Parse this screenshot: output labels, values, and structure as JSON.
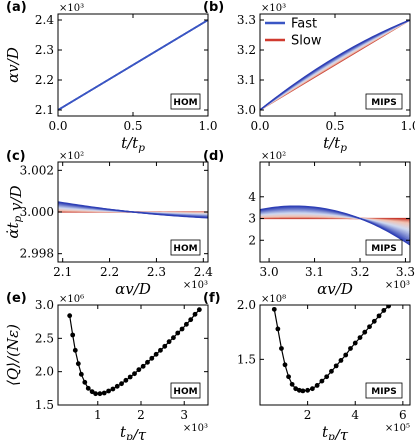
{
  "chart_data": [
    {
      "panel": "(a)",
      "type": "line",
      "tag": "HOM",
      "ylabel": "αv/D",
      "xlabel": "t/t_p",
      "xlim": [
        0,
        1
      ],
      "ylim": [
        2.08,
        2.42
      ],
      "y_multiplier": "×10³",
      "xticks": [
        0.0,
        0.5,
        1.0
      ],
      "xtick_labels": [
        "0.0",
        "0.5",
        "1.0"
      ],
      "yticks": [
        2.1,
        2.2,
        2.3,
        2.4
      ],
      "ytick_labels": [
        "2.1",
        "2.2",
        "2.3",
        "2.4"
      ],
      "curves": {
        "kind": "protocol",
        "count": 22,
        "y0": 2.1,
        "y1": 2.4,
        "curvature_max": 0,
        "overlapping": true
      }
    },
    {
      "panel": "(b)",
      "type": "line",
      "tag": "MIPS",
      "xlabel": "t/t_p",
      "xlim": [
        0,
        1
      ],
      "ylim": [
        2.98,
        3.32
      ],
      "y_multiplier": "×10³",
      "xticks": [
        0.0,
        0.5,
        1.0
      ],
      "xtick_labels": [
        "0.0",
        "0.5",
        "1.0"
      ],
      "yticks": [
        3.0,
        3.1,
        3.2,
        3.3
      ],
      "ytick_labels": [
        "3.0",
        "3.1",
        "3.2",
        "3.3"
      ],
      "legend": {
        "position": "top-left",
        "entries": [
          {
            "label": "Fast",
            "color": "#3a56c4"
          },
          {
            "label": "Slow",
            "color": "#d03a2f"
          }
        ]
      },
      "curves": {
        "kind": "protocol",
        "count": 22,
        "y0": 3.0,
        "y1": 3.3,
        "curvature_max": 0.1,
        "overlapping": false
      }
    },
    {
      "panel": "(c)",
      "type": "line",
      "tag": "HOM",
      "ylabel": "α̇t_p v/D",
      "xlabel": "αv/D",
      "xlim": [
        2.09,
        2.41
      ],
      "ylim": [
        2.9976,
        3.0024
      ],
      "x_multiplier": "×10³",
      "y_multiplier": "×10²",
      "xticks": [
        2.1,
        2.2,
        2.3,
        2.4
      ],
      "xtick_labels": [
        "2.1",
        "2.2",
        "2.3",
        "2.4"
      ],
      "yticks": [
        2.998,
        3.0,
        3.002
      ],
      "ytick_labels": [
        "2.998",
        "3.000",
        "3.002"
      ],
      "curves": {
        "kind": "rate",
        "count": 22,
        "center_x": 2.25,
        "center_y": 3.0,
        "slope_max": -0.0024,
        "curv_max": 0.004
      }
    },
    {
      "panel": "(d)",
      "type": "line",
      "tag": "MIPS",
      "xlabel": "αv/D",
      "xlim": [
        2.98,
        3.31
      ],
      "ylim": [
        1.0,
        5.6
      ],
      "x_multiplier": "×10³",
      "y_multiplier": "×10²",
      "xticks": [
        3.0,
        3.1,
        3.2,
        3.3
      ],
      "xtick_labels": [
        "3.0",
        "3.1",
        "3.2",
        "3.3"
      ],
      "yticks": [
        2,
        3,
        4
      ],
      "ytick_labels": [
        "2",
        "3",
        "4"
      ],
      "curves": {
        "kind": "rate",
        "count": 22,
        "center_x": 3.2,
        "center_y": 3.0,
        "slope_max": -8.0,
        "curv_max": -28.0
      }
    },
    {
      "panel": "(e)",
      "type": "scatter",
      "tag": "HOM",
      "ylabel": "⟨Q⟩/(Nε)",
      "xlabel": "t_p/τ",
      "xlim": [
        0.08,
        3.55
      ],
      "ylim": [
        1.5,
        3.0
      ],
      "x_multiplier": "×10³",
      "y_multiplier": "×10⁶",
      "xticks": [
        1,
        2,
        3
      ],
      "xtick_labels": [
        "1",
        "2",
        "3"
      ],
      "yticks": [
        1.5,
        2.0,
        2.5,
        3.0
      ],
      "ytick_labels": [
        "1.5",
        "2.0",
        "2.5",
        "3.0"
      ],
      "x": [
        0.35,
        0.42,
        0.48,
        0.55,
        0.62,
        0.7,
        0.78,
        0.87,
        0.95,
        1.05,
        1.15,
        1.25,
        1.35,
        1.45,
        1.55,
        1.65,
        1.75,
        1.85,
        1.95,
        2.05,
        2.15,
        2.25,
        2.35,
        2.45,
        2.55,
        2.65,
        2.75,
        2.85,
        2.95,
        3.05,
        3.15,
        3.25,
        3.35
      ],
      "y": [
        2.84,
        2.55,
        2.32,
        2.12,
        1.96,
        1.84,
        1.75,
        1.7,
        1.67,
        1.67,
        1.68,
        1.71,
        1.74,
        1.78,
        1.82,
        1.87,
        1.92,
        1.97,
        2.03,
        2.08,
        2.14,
        2.2,
        2.26,
        2.32,
        2.38,
        2.45,
        2.51,
        2.58,
        2.64,
        2.71,
        2.78,
        2.86,
        2.93
      ]
    },
    {
      "panel": "(f)",
      "type": "scatter",
      "tag": "MIPS",
      "xlabel": "t_p/τ",
      "xlim": [
        0.0,
        6.3
      ],
      "ylim": [
        1.08,
        2.0
      ],
      "x_multiplier": "×10⁵",
      "y_multiplier": "×10⁸",
      "xticks": [
        2,
        4,
        6
      ],
      "xtick_labels": [
        "2",
        "4",
        "6"
      ],
      "yticks": [
        1.5,
        2.0
      ],
      "ytick_labels": [
        "1.5",
        "2.0"
      ],
      "x": [
        0.6,
        0.75,
        0.9,
        1.05,
        1.2,
        1.35,
        1.5,
        1.65,
        1.8,
        2.0,
        2.2,
        2.4,
        2.6,
        2.8,
        3.0,
        3.2,
        3.4,
        3.6,
        3.8,
        4.0,
        4.2,
        4.4,
        4.6,
        4.8,
        5.0,
        5.2,
        5.4
      ],
      "y": [
        1.96,
        1.78,
        1.6,
        1.45,
        1.34,
        1.27,
        1.23,
        1.215,
        1.21,
        1.215,
        1.23,
        1.26,
        1.3,
        1.34,
        1.39,
        1.44,
        1.49,
        1.54,
        1.6,
        1.65,
        1.7,
        1.75,
        1.8,
        1.85,
        1.9,
        1.95,
        1.99
      ]
    }
  ],
  "colors": {
    "fast": "#3a56c4",
    "slow": "#d03a2f",
    "axis": "#000000"
  }
}
